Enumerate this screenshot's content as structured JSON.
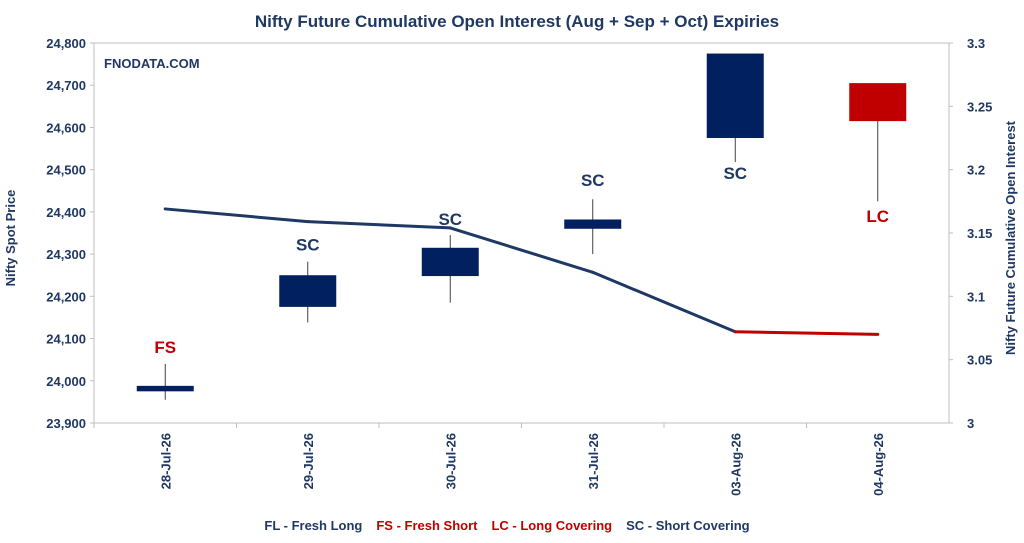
{
  "chart_data": {
    "type": "candlestick",
    "title": "Nifty Future Cumulative Open Interest (Aug + Sep + Oct) Expiries",
    "watermark": "FNODATA.COM",
    "ylabel_left": "Nifty Spot Price",
    "ylabel_right": "Nifty Future Cumulative Open Interest",
    "ylim_left": [
      23900,
      24800
    ],
    "ylim_right": [
      3,
      3.3
    ],
    "yticks_left": [
      "23,900",
      "24,000",
      "24,100",
      "24,200",
      "24,300",
      "24,400",
      "24,500",
      "24,600",
      "24,700",
      "24,800"
    ],
    "yticks_right": [
      "3",
      "3.05",
      "3.1",
      "3.15",
      "3.2",
      "3.25",
      "3.3"
    ],
    "categories": [
      "28-Jul-26",
      "29-Jul-26",
      "30-Jul-26",
      "31-Jul-26",
      "03-Aug-26",
      "04-Aug-26"
    ],
    "candles": [
      {
        "open": 23975,
        "close": 23988,
        "high": 24040,
        "low": 23955,
        "color": "#002060"
      },
      {
        "open": 24175,
        "close": 24250,
        "high": 24282,
        "low": 24138,
        "color": "#002060"
      },
      {
        "open": 24248,
        "close": 24315,
        "high": 24345,
        "low": 24185,
        "color": "#002060"
      },
      {
        "open": 24360,
        "close": 24382,
        "high": 24430,
        "low": 24300,
        "color": "#002060"
      },
      {
        "open": 24575,
        "close": 24775,
        "high": 24775,
        "low": 24518,
        "color": "#002060"
      },
      {
        "open": 24705,
        "close": 24615,
        "high": 24705,
        "low": 24425,
        "color": "#c00000"
      }
    ],
    "open_interest": [
      3.169,
      3.159,
      3.154,
      3.119,
      3.072,
      3.07
    ],
    "line_colors": [
      "#1f3864",
      "#1f3864",
      "#1f3864",
      "#1f3864",
      "#c00000"
    ],
    "annotations": [
      {
        "text": "FS",
        "price": 24080,
        "color": "#c00000"
      },
      {
        "text": "SC",
        "price": 24323,
        "color": "#1f3864"
      },
      {
        "text": "SC",
        "price": 24383,
        "color": "#1f3864"
      },
      {
        "text": "SC",
        "price": 24475,
        "color": "#1f3864"
      },
      {
        "text": "SC",
        "price": 24492,
        "color": "#1f3864"
      },
      {
        "text": "LC",
        "price": 24390,
        "color": "#c00000"
      }
    ],
    "legend": [
      {
        "text": "FL - Fresh Long",
        "color": "#1f3864"
      },
      {
        "text": "FS - Fresh Short",
        "color": "#c00000"
      },
      {
        "text": "LC - Long Covering",
        "color": "#c00000"
      },
      {
        "text": "SC - Short Covering",
        "color": "#1f3864"
      }
    ],
    "grid": false,
    "legend_position": "bottom"
  }
}
